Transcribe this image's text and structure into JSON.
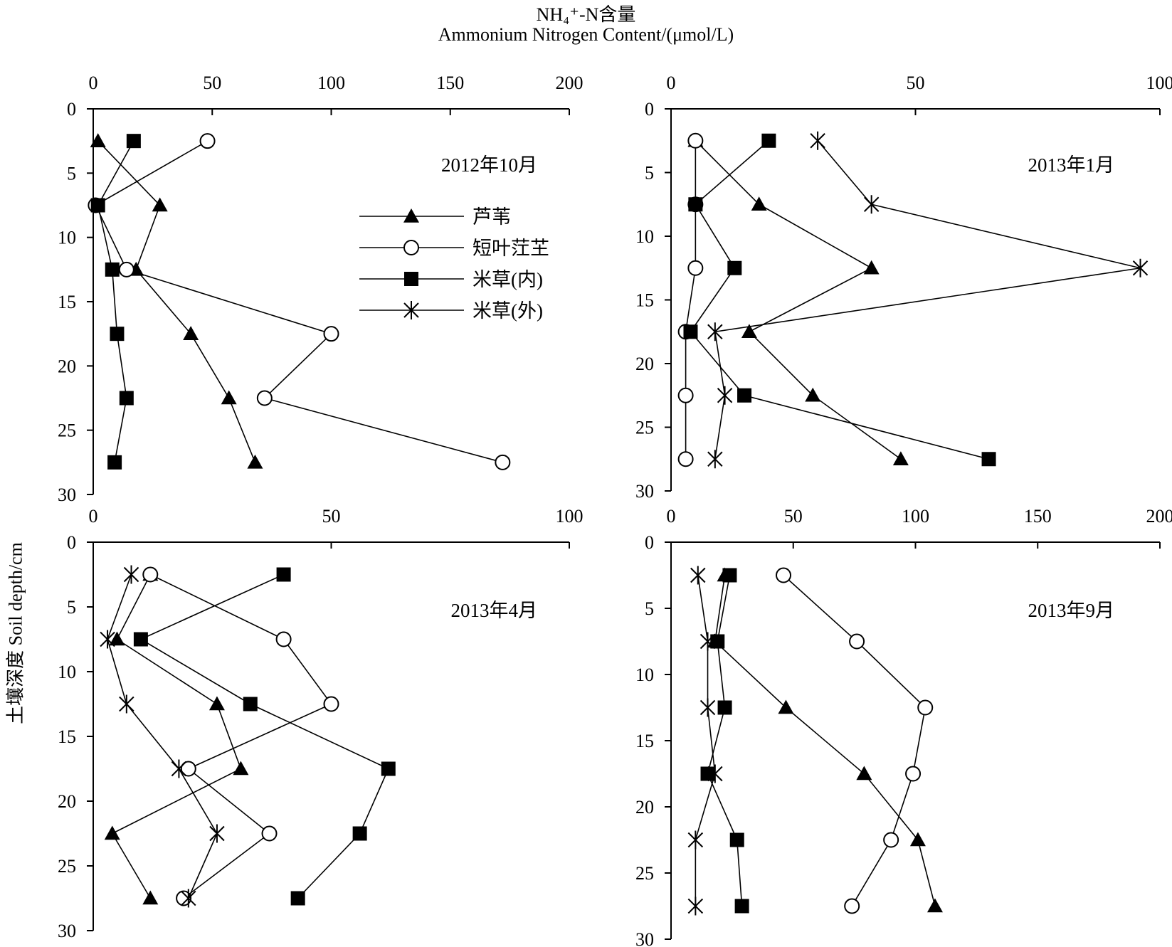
{
  "figure": {
    "title_line1": "NH₄⁺-N含量",
    "title_line2": "Ammonium Nitrogen Content/(μmol/L)",
    "ylabel": "土壤深度 Soil depth/cm"
  },
  "legend": [
    {
      "name": "芦苇",
      "marker": "triangle"
    },
    {
      "name": "短叶茳芏",
      "marker": "circle"
    },
    {
      "name": "米草(内)",
      "marker": "square"
    },
    {
      "name": "米草(外)",
      "marker": "star"
    }
  ],
  "chart_data": [
    {
      "type": "line",
      "title": "2012年10月",
      "xlabel": "Ammonium Nitrogen Content/(μmol/L)",
      "ylabel": "土壤深度 Soil depth/cm",
      "xlim": [
        0,
        200
      ],
      "xticks": [
        0,
        50,
        100,
        150,
        200
      ],
      "ylim": [
        0,
        30
      ],
      "yticks": [
        0,
        5,
        10,
        15,
        20,
        25,
        30
      ],
      "depths": [
        2.5,
        7.5,
        12.5,
        17.5,
        22.5,
        27.5
      ],
      "series": [
        {
          "name": "芦苇",
          "marker": "triangle",
          "x": [
            2,
            28,
            18,
            41,
            57,
            68
          ]
        },
        {
          "name": "短叶茳芏",
          "marker": "circle",
          "x": [
            48,
            1,
            14,
            100,
            72,
            172
          ]
        },
        {
          "name": "米草(内)",
          "marker": "square",
          "x": [
            17,
            2,
            8,
            10,
            14,
            9
          ]
        }
      ]
    },
    {
      "type": "line",
      "title": "2013年1月",
      "xlabel": "Ammonium Nitrogen Content/(μmol/L)",
      "ylabel": "土壤深度 Soil depth/cm",
      "xlim": [
        0,
        100
      ],
      "xticks": [
        0,
        50,
        100
      ],
      "ylim": [
        0,
        30
      ],
      "yticks": [
        0,
        5,
        10,
        15,
        20,
        25,
        30
      ],
      "depths": [
        2.5,
        7.5,
        12.5,
        17.5,
        22.5,
        27.5
      ],
      "series": [
        {
          "name": "芦苇",
          "marker": "triangle",
          "x": [
            5,
            18,
            41,
            16,
            29,
            47
          ]
        },
        {
          "name": "短叶茳芏",
          "marker": "circle",
          "x": [
            5,
            5,
            5,
            3,
            3,
            3
          ]
        },
        {
          "name": "米草(内)",
          "marker": "square",
          "x": [
            20,
            5,
            13,
            4,
            15,
            65
          ]
        },
        {
          "name": "米草(外)",
          "marker": "star",
          "x": [
            30,
            41,
            96,
            9,
            11,
            9
          ]
        }
      ]
    },
    {
      "type": "line",
      "title": "2013年4月",
      "xlabel": "Ammonium Nitrogen Content/(μmol/L)",
      "ylabel": "土壤深度 Soil depth/cm",
      "xlim": [
        0,
        100
      ],
      "xticks": [
        0,
        50,
        100
      ],
      "ylim": [
        0,
        30
      ],
      "yticks": [
        0,
        5,
        10,
        15,
        20,
        25,
        30
      ],
      "depths": [
        2.5,
        7.5,
        12.5,
        17.5,
        22.5,
        27.5
      ],
      "series": [
        {
          "name": "芦苇",
          "marker": "triangle",
          "x": [
            12,
            5,
            26,
            31,
            4,
            12
          ]
        },
        {
          "name": "短叶茳芏",
          "marker": "circle",
          "x": [
            12,
            40,
            50,
            20,
            37,
            19
          ]
        },
        {
          "name": "米草(内)",
          "marker": "square",
          "x": [
            40,
            10,
            33,
            62,
            56,
            43
          ]
        },
        {
          "name": "米草(外)",
          "marker": "star",
          "x": [
            8,
            3,
            7,
            18,
            26,
            20
          ]
        }
      ]
    },
    {
      "type": "line",
      "title": "2013年9月",
      "xlabel": "Ammonium Nitrogen Content/(μmol/L)",
      "ylabel": "土壤深度 Soil depth/cm",
      "xlim": [
        0,
        200
      ],
      "xticks": [
        0,
        50,
        100,
        150,
        200
      ],
      "ylim": [
        0,
        30
      ],
      "yticks": [
        0,
        5,
        10,
        15,
        20,
        25,
        30
      ],
      "depths": [
        2.5,
        7.5,
        12.5,
        17.5,
        22.5,
        27.5
      ],
      "series": [
        {
          "name": "芦苇",
          "marker": "triangle",
          "x": [
            22,
            18,
            47,
            79,
            101,
            108
          ]
        },
        {
          "name": "短叶茳芏",
          "marker": "circle",
          "x": [
            46,
            76,
            104,
            99,
            90,
            74
          ]
        },
        {
          "name": "米草(内)",
          "marker": "square",
          "x": [
            24,
            19,
            22,
            15,
            27,
            29
          ]
        },
        {
          "name": "米草(外)",
          "marker": "star",
          "x": [
            11,
            15,
            15,
            18,
            10,
            10
          ]
        }
      ]
    }
  ]
}
